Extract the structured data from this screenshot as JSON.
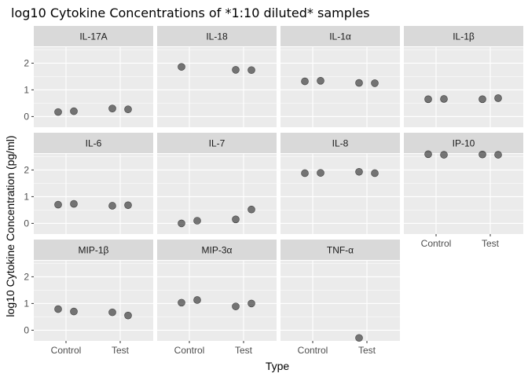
{
  "chart_data": {
    "type": "scatter",
    "title": "log10 Cytokine Concentrations of *1:10 diluted* samples",
    "xlabel": "Type",
    "ylabel": "log10 Cytokine Concentration (pg/ml)",
    "x_categories": [
      "Control",
      "Test"
    ],
    "y_ticks": [
      0,
      1,
      2
    ],
    "ylim": [
      -0.4,
      2.6
    ],
    "grid": true,
    "point_color": "#333333",
    "panel_background": "#ebebeb",
    "strip_background": "#d9d9d9",
    "grid_color": "#ffffff",
    "facets": [
      {
        "name": "IL-17A",
        "points": [
          {
            "x": "Control",
            "y": 0.17
          },
          {
            "x": "Control",
            "y": 0.2
          },
          {
            "x": "Test",
            "y": 0.3
          },
          {
            "x": "Test",
            "y": 0.27
          }
        ]
      },
      {
        "name": "IL-18",
        "points": [
          {
            "x": "Control",
            "y": 1.86
          },
          {
            "x": "Test",
            "y": 1.75
          },
          {
            "x": "Test",
            "y": 1.74
          }
        ]
      },
      {
        "name": "IL-1α",
        "points": [
          {
            "x": "Control",
            "y": 1.32
          },
          {
            "x": "Control",
            "y": 1.34
          },
          {
            "x": "Test",
            "y": 1.26
          },
          {
            "x": "Test",
            "y": 1.25
          }
        ]
      },
      {
        "name": "IL-1β",
        "points": [
          {
            "x": "Control",
            "y": 0.65
          },
          {
            "x": "Control",
            "y": 0.66
          },
          {
            "x": "Test",
            "y": 0.65
          },
          {
            "x": "Test",
            "y": 0.69
          }
        ]
      },
      {
        "name": "IL-6",
        "points": [
          {
            "x": "Control",
            "y": 0.7
          },
          {
            "x": "Control",
            "y": 0.73
          },
          {
            "x": "Test",
            "y": 0.66
          },
          {
            "x": "Test",
            "y": 0.68
          }
        ]
      },
      {
        "name": "IL-7",
        "points": [
          {
            "x": "Control",
            "y": 0.0
          },
          {
            "x": "Control",
            "y": 0.1
          },
          {
            "x": "Test",
            "y": 0.15
          },
          {
            "x": "Test",
            "y": 0.52
          }
        ]
      },
      {
        "name": "IL-8",
        "points": [
          {
            "x": "Control",
            "y": 1.88
          },
          {
            "x": "Control",
            "y": 1.89
          },
          {
            "x": "Test",
            "y": 1.93
          },
          {
            "x": "Test",
            "y": 1.88
          }
        ]
      },
      {
        "name": "IP-10",
        "points": [
          {
            "x": "Control",
            "y": 2.59
          },
          {
            "x": "Control",
            "y": 2.57
          },
          {
            "x": "Test",
            "y": 2.58
          },
          {
            "x": "Test",
            "y": 2.57
          }
        ]
      },
      {
        "name": "MIP-1β",
        "points": [
          {
            "x": "Control",
            "y": 0.79
          },
          {
            "x": "Control",
            "y": 0.7
          },
          {
            "x": "Test",
            "y": 0.67
          },
          {
            "x": "Test",
            "y": 0.55
          }
        ]
      },
      {
        "name": "MIP-3α",
        "points": [
          {
            "x": "Control",
            "y": 1.03
          },
          {
            "x": "Control",
            "y": 1.13
          },
          {
            "x": "Test",
            "y": 0.89
          },
          {
            "x": "Test",
            "y": 1.0
          }
        ]
      },
      {
        "name": "TNF-α",
        "points": [
          {
            "x": "Test",
            "y": -0.29
          }
        ]
      }
    ]
  }
}
